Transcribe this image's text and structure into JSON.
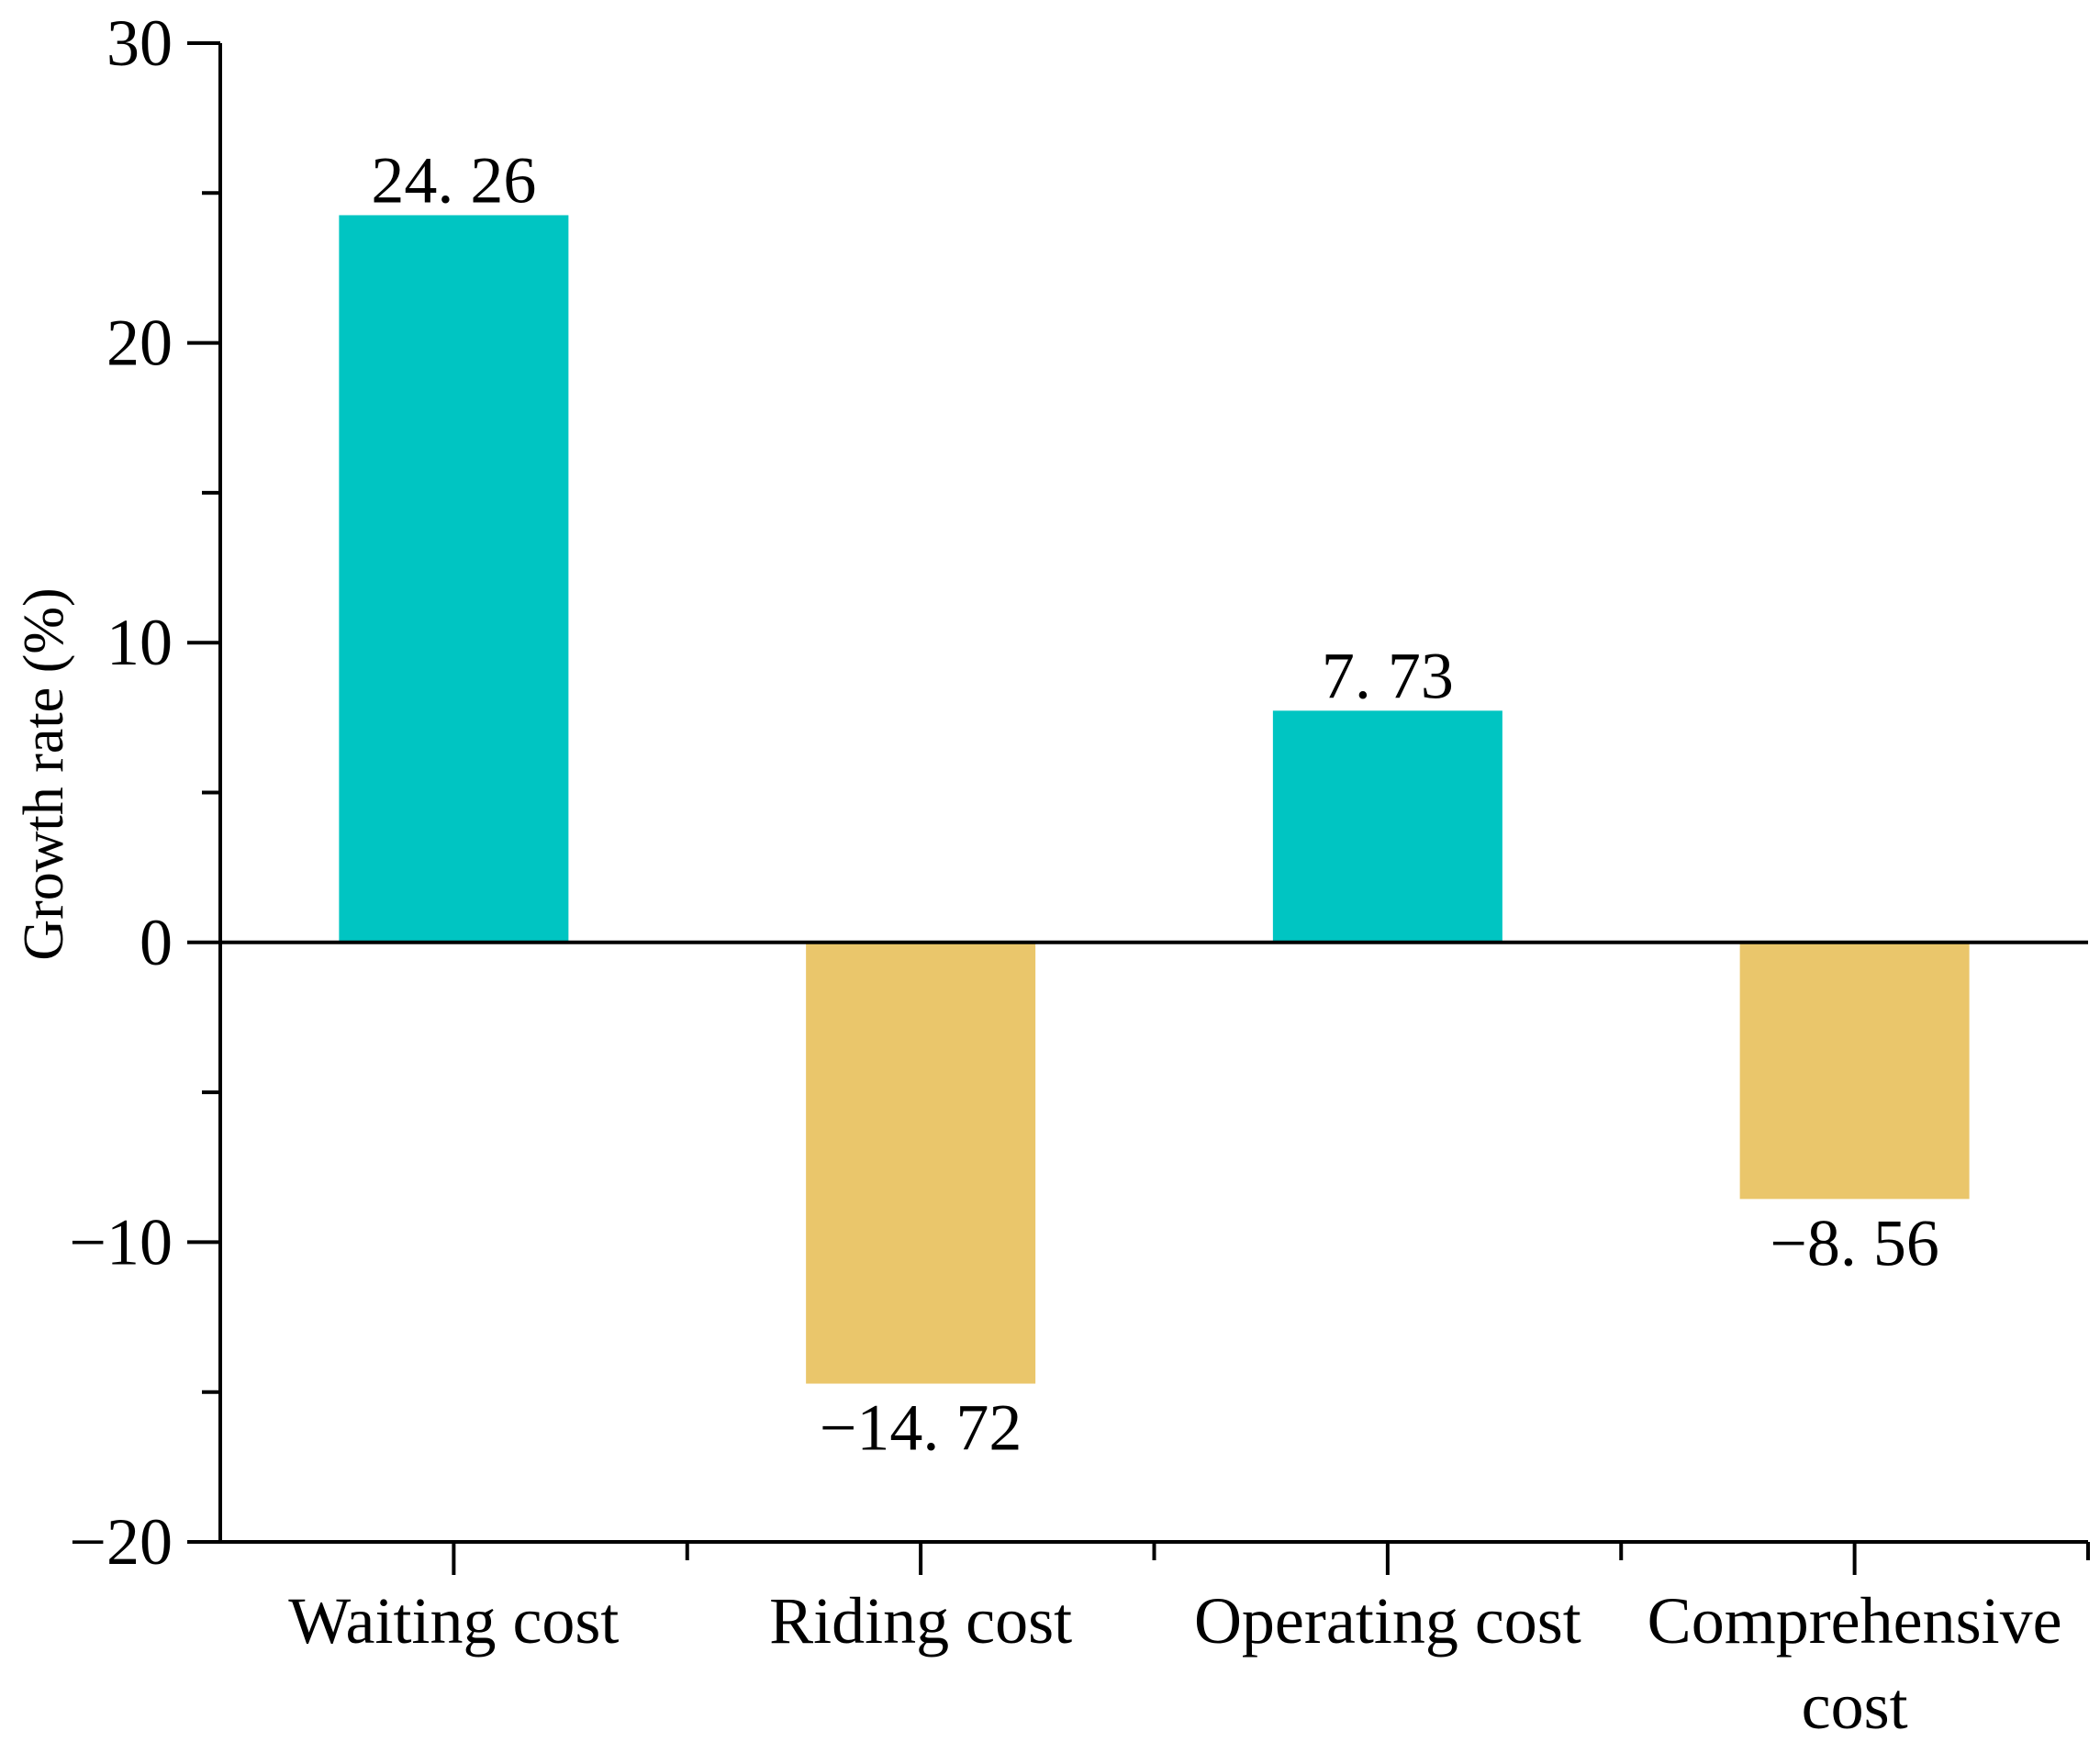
{
  "chart_data": {
    "type": "bar",
    "title": "",
    "xlabel": "",
    "ylabel": "Growth rate (%)",
    "ylim": [
      -20,
      30
    ],
    "yticks": [
      -20,
      -10,
      0,
      10,
      20,
      30
    ],
    "ytick_labels": [
      "−20",
      "−10",
      "0",
      "10",
      "20",
      "30"
    ],
    "categories": [
      [
        "Waiting cost"
      ],
      [
        "Riding cost"
      ],
      [
        "Operating cost"
      ],
      [
        "Comprehensive",
        "cost"
      ]
    ],
    "values": [
      24.26,
      -14.72,
      7.73,
      -8.56
    ],
    "value_labels": [
      "24. 26",
      "−14. 72",
      "7. 73",
      "−8. 56"
    ],
    "colors": {
      "positive": "#00C5C2",
      "negative": "#EAC66B",
      "axis": "#000000"
    },
    "grid": false,
    "legend": "none"
  }
}
